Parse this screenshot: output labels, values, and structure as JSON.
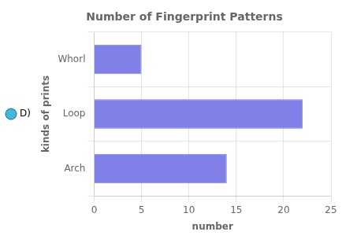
{
  "chart_data": {
    "type": "bar",
    "orientation": "horizontal",
    "title": "Number of Fingerprint Patterns",
    "categories": [
      "Arch",
      "Loop",
      "Whorl"
    ],
    "values": [
      14,
      22,
      5
    ],
    "color": "#8080e8",
    "xlabel": "number",
    "ylabel": "kinds of prints",
    "xlim": [
      0,
      25
    ],
    "xticks": [
      0,
      5,
      10,
      15,
      20,
      25
    ],
    "grid": true,
    "annotation": "D)"
  }
}
